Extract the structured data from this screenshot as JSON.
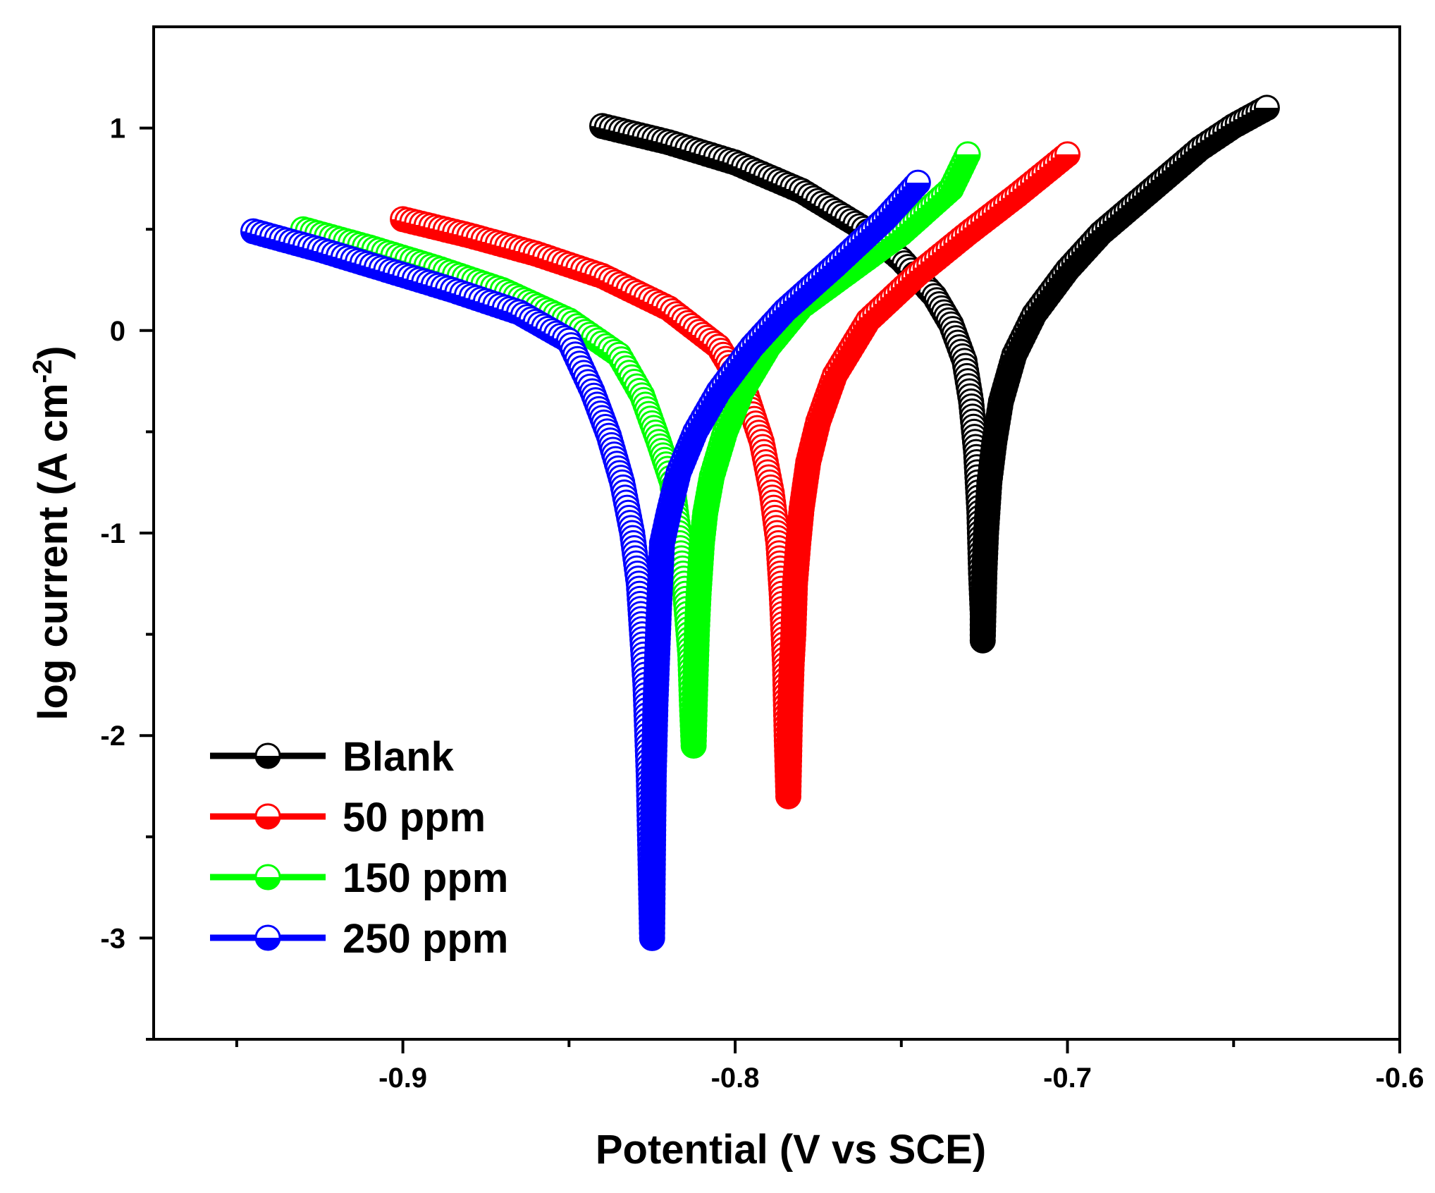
{
  "chart_data": {
    "type": "scatter",
    "title": "",
    "xlabel": "Potential (V vs SCE)",
    "ylabel_main": "log current (A cm",
    "ylabel_sup": "-2",
    "ylabel_end": ")",
    "xlim": [
      -0.975,
      -0.6
    ],
    "ylim": [
      -3.5,
      1.5
    ],
    "xticks": [
      -0.9,
      -0.8,
      -0.7,
      -0.6
    ],
    "xtick_labels": [
      "-0.9",
      "-0.8",
      "-0.7",
      "-0.6"
    ],
    "xminor": [
      -0.95,
      -0.85,
      -0.75,
      -0.65
    ],
    "yticks": [
      1,
      0,
      -1,
      -2,
      -3
    ],
    "ytick_labels": [
      "1",
      "0",
      "-1",
      "-2",
      "-3"
    ],
    "yminor": [
      0.5,
      -0.5,
      -1.5,
      -2.5,
      -3.5
    ],
    "legend_position": "bottom-left",
    "series": [
      {
        "name": "Blank",
        "color": "#000000",
        "cathodic": [
          [
            -0.84,
            1.01
          ],
          [
            -0.82,
            0.93
          ],
          [
            -0.8,
            0.83
          ],
          [
            -0.78,
            0.69
          ],
          [
            -0.76,
            0.49
          ],
          [
            -0.75,
            0.35
          ],
          [
            -0.74,
            0.17
          ],
          [
            -0.735,
            0.03
          ],
          [
            -0.731,
            -0.15
          ],
          [
            -0.729,
            -0.35
          ],
          [
            -0.7275,
            -0.6
          ],
          [
            -0.7265,
            -0.9
          ],
          [
            -0.726,
            -1.2
          ],
          [
            -0.7255,
            -1.4
          ],
          [
            -0.7255,
            -1.53
          ]
        ],
        "anodic": [
          [
            -0.7255,
            -1.53
          ],
          [
            -0.725,
            -1.2
          ],
          [
            -0.7245,
            -1.0
          ],
          [
            -0.7235,
            -0.75
          ],
          [
            -0.722,
            -0.55
          ],
          [
            -0.72,
            -0.35
          ],
          [
            -0.716,
            -0.12
          ],
          [
            -0.71,
            0.08
          ],
          [
            -0.7,
            0.3
          ],
          [
            -0.69,
            0.48
          ],
          [
            -0.68,
            0.62
          ],
          [
            -0.67,
            0.76
          ],
          [
            -0.66,
            0.9
          ],
          [
            -0.65,
            1.01
          ],
          [
            -0.64,
            1.1
          ]
        ]
      },
      {
        "name": "50 ppm",
        "color": "#ff0000",
        "cathodic": [
          [
            -0.9,
            0.55
          ],
          [
            -0.88,
            0.47
          ],
          [
            -0.86,
            0.38
          ],
          [
            -0.84,
            0.27
          ],
          [
            -0.82,
            0.11
          ],
          [
            -0.805,
            -0.08
          ],
          [
            -0.797,
            -0.3
          ],
          [
            -0.792,
            -0.55
          ],
          [
            -0.789,
            -0.8
          ],
          [
            -0.787,
            -1.05
          ],
          [
            -0.786,
            -1.3
          ],
          [
            -0.785,
            -1.65
          ],
          [
            -0.7845,
            -2.0
          ],
          [
            -0.784,
            -2.3
          ]
        ],
        "anodic": [
          [
            -0.784,
            -2.3
          ],
          [
            -0.7835,
            -1.9
          ],
          [
            -0.783,
            -1.65
          ],
          [
            -0.7825,
            -1.5
          ],
          [
            -0.782,
            -1.25
          ],
          [
            -0.781,
            -1.05
          ],
          [
            -0.78,
            -0.88
          ],
          [
            -0.778,
            -0.65
          ],
          [
            -0.775,
            -0.45
          ],
          [
            -0.77,
            -0.22
          ],
          [
            -0.76,
            0.05
          ],
          [
            -0.745,
            0.28
          ],
          [
            -0.73,
            0.48
          ],
          [
            -0.715,
            0.67
          ],
          [
            -0.7,
            0.87
          ]
        ]
      },
      {
        "name": "150 ppm",
        "color": "#00ff00",
        "cathodic": [
          [
            -0.93,
            0.5
          ],
          [
            -0.91,
            0.41
          ],
          [
            -0.89,
            0.31
          ],
          [
            -0.87,
            0.2
          ],
          [
            -0.85,
            0.05
          ],
          [
            -0.835,
            -0.12
          ],
          [
            -0.828,
            -0.32
          ],
          [
            -0.823,
            -0.55
          ],
          [
            -0.819,
            -0.75
          ],
          [
            -0.817,
            -1.0
          ],
          [
            -0.815,
            -1.3
          ],
          [
            -0.8135,
            -1.6
          ],
          [
            -0.813,
            -1.85
          ],
          [
            -0.8125,
            -2.05
          ]
        ],
        "anodic": [
          [
            -0.8125,
            -2.05
          ],
          [
            -0.812,
            -1.75
          ],
          [
            -0.8115,
            -1.48
          ],
          [
            -0.811,
            -1.3
          ],
          [
            -0.81,
            -1.05
          ],
          [
            -0.809,
            -0.9
          ],
          [
            -0.807,
            -0.72
          ],
          [
            -0.803,
            -0.5
          ],
          [
            -0.798,
            -0.3
          ],
          [
            -0.79,
            -0.08
          ],
          [
            -0.78,
            0.12
          ],
          [
            -0.765,
            0.3
          ],
          [
            -0.75,
            0.48
          ],
          [
            -0.735,
            0.7
          ],
          [
            -0.73,
            0.87
          ]
        ]
      },
      {
        "name": "250 ppm",
        "color": "#0000ff",
        "cathodic": [
          [
            -0.945,
            0.49
          ],
          [
            -0.925,
            0.4
          ],
          [
            -0.905,
            0.3
          ],
          [
            -0.885,
            0.2
          ],
          [
            -0.865,
            0.09
          ],
          [
            -0.85,
            -0.05
          ],
          [
            -0.843,
            -0.3
          ],
          [
            -0.838,
            -0.52
          ],
          [
            -0.834,
            -0.75
          ],
          [
            -0.831,
            -1.0
          ],
          [
            -0.829,
            -1.25
          ],
          [
            -0.828,
            -1.5
          ],
          [
            -0.827,
            -1.75
          ],
          [
            -0.826,
            -2.2
          ],
          [
            -0.825,
            -3.0
          ]
        ],
        "anodic": [
          [
            -0.825,
            -3.0
          ],
          [
            -0.8245,
            -2.2
          ],
          [
            -0.824,
            -1.85
          ],
          [
            -0.8235,
            -1.62
          ],
          [
            -0.823,
            -1.4
          ],
          [
            -0.8225,
            -1.22
          ],
          [
            -0.822,
            -1.05
          ],
          [
            -0.82,
            -0.9
          ],
          [
            -0.817,
            -0.7
          ],
          [
            -0.812,
            -0.5
          ],
          [
            -0.805,
            -0.3
          ],
          [
            -0.795,
            -0.08
          ],
          [
            -0.785,
            0.1
          ],
          [
            -0.77,
            0.32
          ],
          [
            -0.755,
            0.55
          ],
          [
            -0.745,
            0.73
          ]
        ]
      }
    ]
  }
}
